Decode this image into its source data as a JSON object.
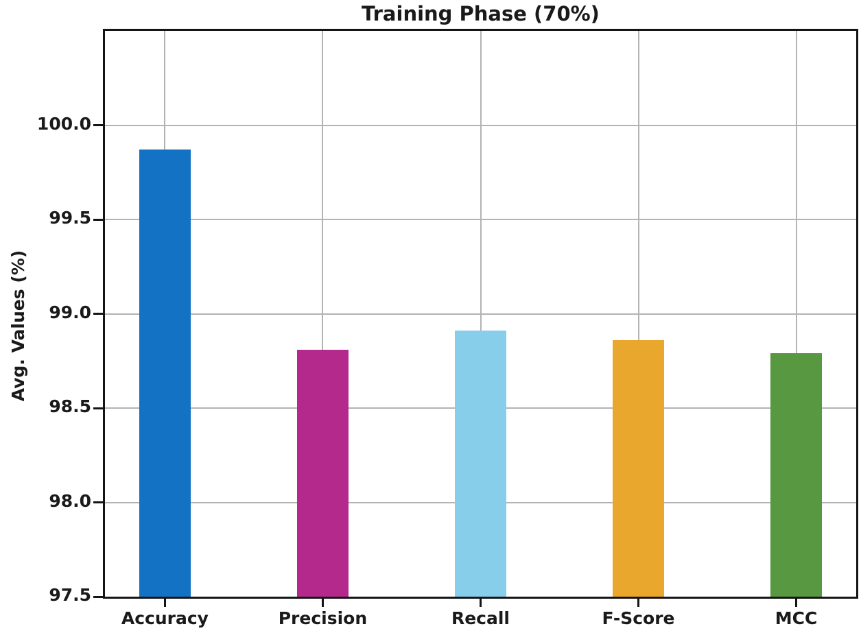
{
  "figure": {
    "title": "Training Phase (70%)",
    "ylabel": "Avg. Values (%)"
  },
  "chart_data": {
    "type": "bar",
    "title": "Training Phase (70%)",
    "xlabel": "",
    "ylabel": "Avg. Values (%)",
    "categories": [
      "Accuracy",
      "Precision",
      "Recall",
      "F-Score",
      "MCC"
    ],
    "values": [
      99.87,
      98.81,
      98.91,
      98.86,
      98.79
    ],
    "bar_colors": [
      "#1372c4",
      "#b32a8c",
      "#87ceeb",
      "#eaa72e",
      "#579840"
    ],
    "ylim": [
      97.5,
      100.5
    ],
    "yticks": [
      97.5,
      98.0,
      98.5,
      99.0,
      99.5,
      100.0
    ],
    "ytick_labels": [
      "97.5",
      "98.0",
      "98.5",
      "99.0",
      "99.5",
      "100.0"
    ],
    "grid": true,
    "legend": false
  },
  "colors": {
    "background": "#ffffff",
    "text": "#1a1a1a",
    "spine": "#141414",
    "grid": "#b3b3b3"
  }
}
